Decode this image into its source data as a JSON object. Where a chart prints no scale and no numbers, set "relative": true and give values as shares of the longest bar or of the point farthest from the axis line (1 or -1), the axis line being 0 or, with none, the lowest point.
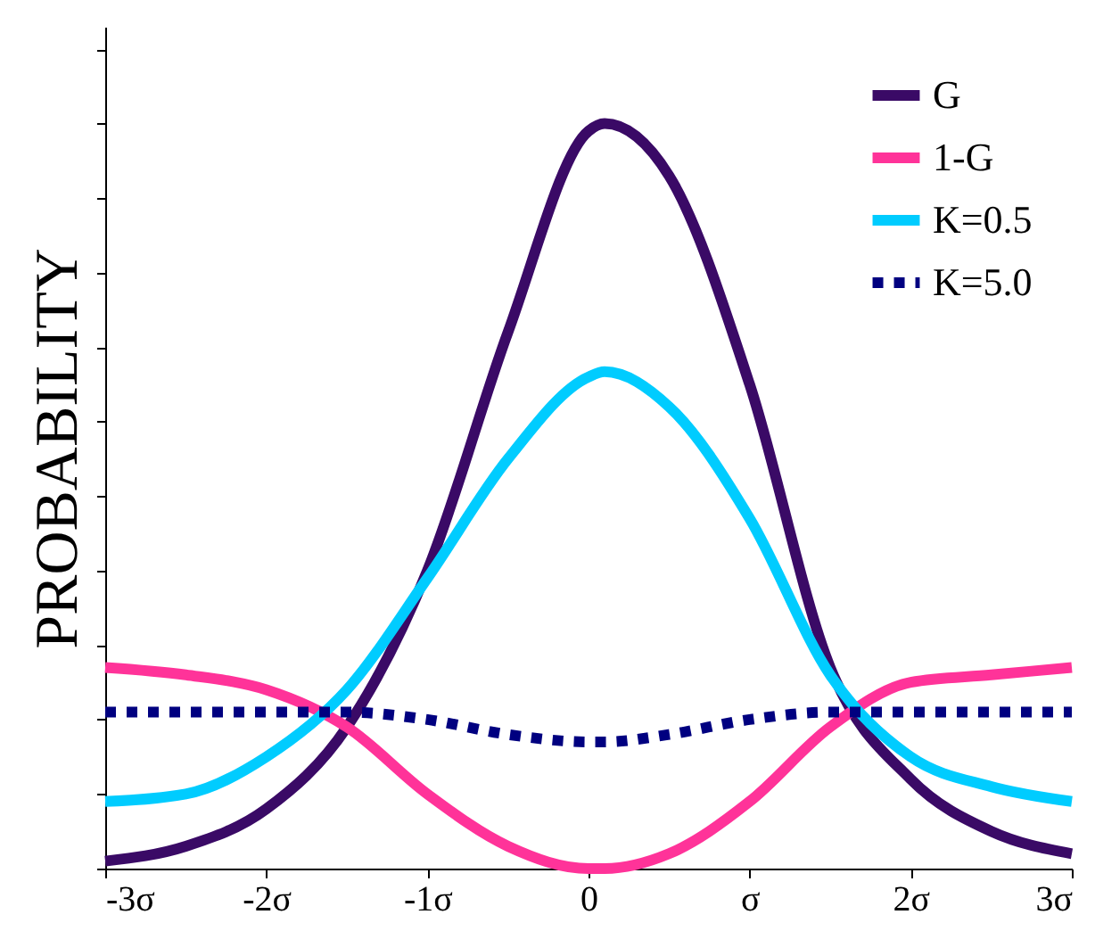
{
  "chart_data": {
    "type": "line",
    "relative": true,
    "ylabel": "PROBABILITY",
    "legend": "top right",
    "grid": false,
    "tick_labels": "x",
    "line_style": "solid",
    "x": [
      -3,
      -2.5,
      -2,
      -1.5,
      -1,
      -0.5,
      0,
      0.1,
      0.5,
      1,
      1.5,
      2,
      2.5,
      3
    ],
    "xlim": [
      -3,
      3
    ],
    "xticks": [
      {
        "value": -3,
        "label": "-3σ"
      },
      {
        "value": -2,
        "label": "-2σ"
      },
      {
        "value": -1,
        "label": "-1σ"
      },
      0,
      {
        "value": 1,
        "label": "σ"
      },
      {
        "value": 2,
        "label": "2σ"
      },
      {
        "value": 3,
        "label": "3σ"
      }
    ],
    "series": [
      {
        "name": "G",
        "color": "#3a0a66",
        "values": [
          0.01,
          0.03,
          0.08,
          0.19,
          0.4,
          0.72,
          0.99,
          1.0,
          0.93,
          0.65,
          0.27,
          0.12,
          0.05,
          0.02
        ]
      },
      {
        "name": "1-G",
        "color": "#ff3399",
        "values": [
          0.27,
          0.26,
          0.24,
          0.19,
          0.1,
          0.03,
          0.0,
          0.0,
          0.02,
          0.09,
          0.19,
          0.25,
          0.26,
          0.27
        ]
      },
      {
        "name": "K=0.5",
        "color": "#00ccff",
        "values": [
          0.09,
          0.1,
          0.15,
          0.24,
          0.39,
          0.55,
          0.66,
          0.667,
          0.62,
          0.47,
          0.26,
          0.15,
          0.11,
          0.09
        ]
      },
      {
        "name": "K=5.0",
        "color": "#000080",
        "line_style": "dashed",
        "values": [
          0.21,
          0.21,
          0.21,
          0.21,
          0.2,
          0.18,
          0.17,
          0.17,
          0.18,
          0.2,
          0.21,
          0.21,
          0.21,
          0.21
        ]
      }
    ]
  }
}
